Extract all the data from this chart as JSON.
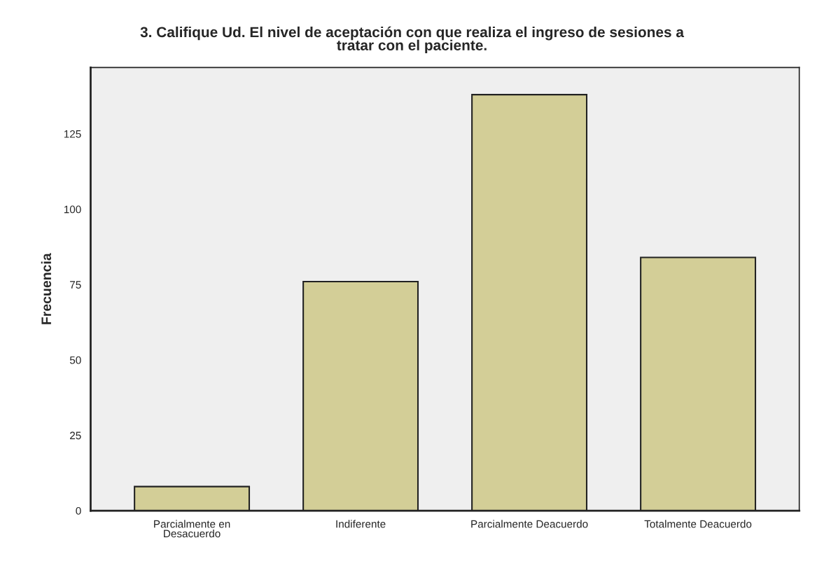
{
  "chart_data": {
    "type": "bar",
    "title": "3. Califique Ud. El nivel de aceptación con que realiza el ingreso de sesiones a\ntratar con el paciente.",
    "ylabel": "Frecuencia",
    "categories": [
      "Parcialmente en\nDesacuerdo",
      "Indiferente",
      "Parcialmente Deacuerdo",
      "Totalmente Deacuerdo"
    ],
    "values": [
      8,
      76,
      138,
      84
    ],
    "color": "#d3ce97",
    "ylim": [
      0,
      147
    ],
    "yticks": [
      0,
      25,
      50,
      75,
      100,
      125
    ],
    "grid": false
  }
}
